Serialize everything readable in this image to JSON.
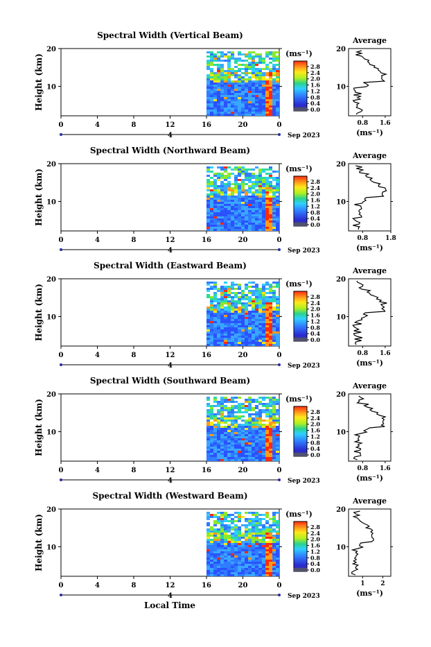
{
  "chart_data": {
    "type": "heatmap",
    "date_label": "Sep 2023",
    "xlabel": "Local Time",
    "ylabel": "Height (km)",
    "unit": "(ms⁻¹)",
    "x_ticks": [
      "0",
      "4",
      "8",
      "12",
      "16",
      "20",
      "0"
    ],
    "day_marker": "4",
    "y_ticks": [
      "20",
      "10"
    ],
    "colorbar_ticks": [
      "2.8",
      "2.4",
      "2.0",
      "1.6",
      "1.2",
      "0.8",
      "0.4",
      "0.0"
    ],
    "average_title": "Average",
    "average_xlabel": "(ms⁻¹)",
    "colors": {
      "low": "#2a2a8a",
      "mid": "#3a9bff",
      "high": "#ff2a1a"
    },
    "panels": [
      {
        "title": "Spectral Width (Vertical Beam)",
        "avg_ticks": [
          "0.8",
          "1.6"
        ],
        "avg_xlim": [
          0.3,
          1.8
        ]
      },
      {
        "title": "Spectral Width (Northward Beam)",
        "avg_ticks": [
          "0.8",
          "1.8"
        ],
        "avg_xlim": [
          0.3,
          1.8
        ]
      },
      {
        "title": "Spectral Width (Eastward Beam)",
        "avg_ticks": [
          "0.8",
          "1.6"
        ],
        "avg_xlim": [
          0.3,
          1.8
        ]
      },
      {
        "title": "Spectral Width (Southward Beam)",
        "avg_ticks": [
          "0.8",
          "1.6"
        ],
        "avg_xlim": [
          0.3,
          1.8
        ]
      },
      {
        "title": "Spectral Width (Westward Beam)",
        "avg_ticks": [
          "1",
          "2"
        ],
        "avg_xlim": [
          0.3,
          2.4
        ]
      }
    ]
  }
}
